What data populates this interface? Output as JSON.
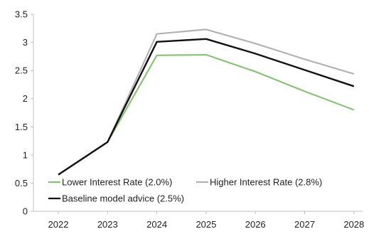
{
  "chart_data": {
    "type": "line",
    "title": "",
    "xlabel": "",
    "ylabel": "",
    "categories": [
      "2022",
      "2023",
      "2024",
      "2025",
      "2026",
      "2027",
      "2028"
    ],
    "ylim": [
      0,
      3.5
    ],
    "yticks": [
      "0",
      "0.5",
      "1",
      "1.5",
      "2",
      "2.5",
      "3",
      "3.5"
    ],
    "grid": false,
    "legend_position": "bottom-left",
    "series": [
      {
        "name": "Lower Interest Rate (2.0%)",
        "color": "#8cc17a",
        "values": [
          0.65,
          1.23,
          2.77,
          2.78,
          2.48,
          2.13,
          1.8
        ]
      },
      {
        "name": "Higher Interest Rate (2.8%)",
        "color": "#b3b3b3",
        "values": [
          0.65,
          1.23,
          3.15,
          3.23,
          2.98,
          2.7,
          2.44
        ]
      },
      {
        "name": "Baseline model advice (2.5%)",
        "color": "#111111",
        "values": [
          0.65,
          1.23,
          3.01,
          3.06,
          2.8,
          2.51,
          2.22
        ]
      }
    ]
  }
}
